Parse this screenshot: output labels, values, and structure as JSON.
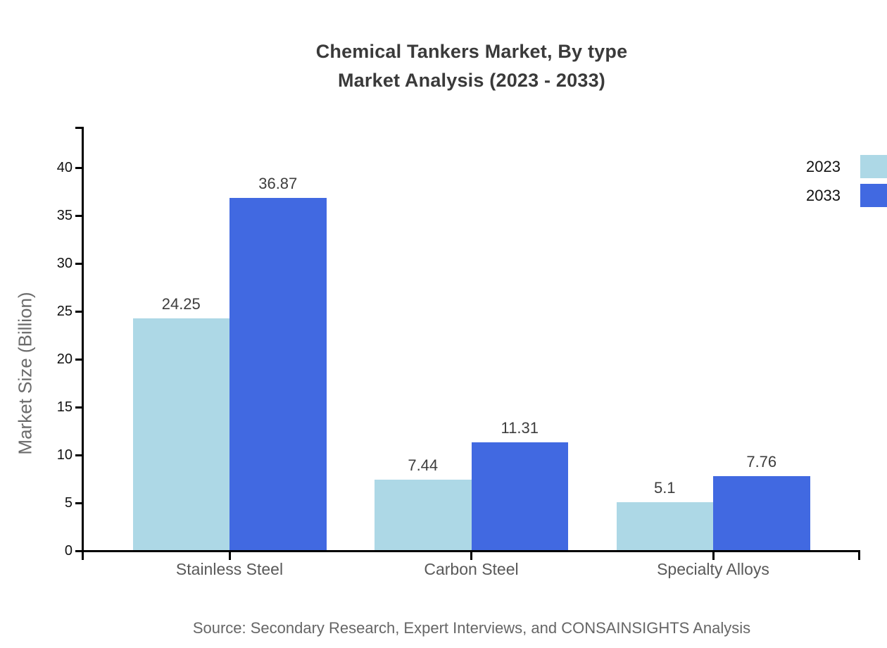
{
  "title": {
    "line1": "Chemical Tankers Market, By type",
    "line2": "Market Analysis (2023 - 2033)"
  },
  "chart_data": {
    "type": "bar",
    "title": "Chemical Tankers Market, By type Market Analysis (2023 - 2033)",
    "categories": [
      "Stainless Steel",
      "Carbon Steel",
      "Specialty Alloys"
    ],
    "series": [
      {
        "name": "2023",
        "color": "#ADD8E6",
        "values": [
          24.25,
          7.44,
          5.1
        ],
        "labels": [
          "24.25",
          "7.44",
          "5.1"
        ]
      },
      {
        "name": "2033",
        "color": "#4169E1",
        "values": [
          36.87,
          11.31,
          7.76
        ],
        "labels": [
          "36.87",
          "11.31",
          "7.76"
        ]
      }
    ],
    "xlabel": "",
    "ylabel": "Market Size (Billion)",
    "ylim": [
      0,
      44.3
    ],
    "yticks": [
      0,
      5,
      10,
      15,
      20,
      25,
      30,
      35,
      40
    ],
    "grid": false,
    "legend_position": "top-right",
    "axis_color": "#000000",
    "label_color": "#3d3d3d",
    "tick_label_color": "#111111",
    "category_label_color": "#595959"
  },
  "footer": {
    "source": "Source: Secondary Research, Expert Interviews, and CONSAINSIGHTS Analysis"
  }
}
